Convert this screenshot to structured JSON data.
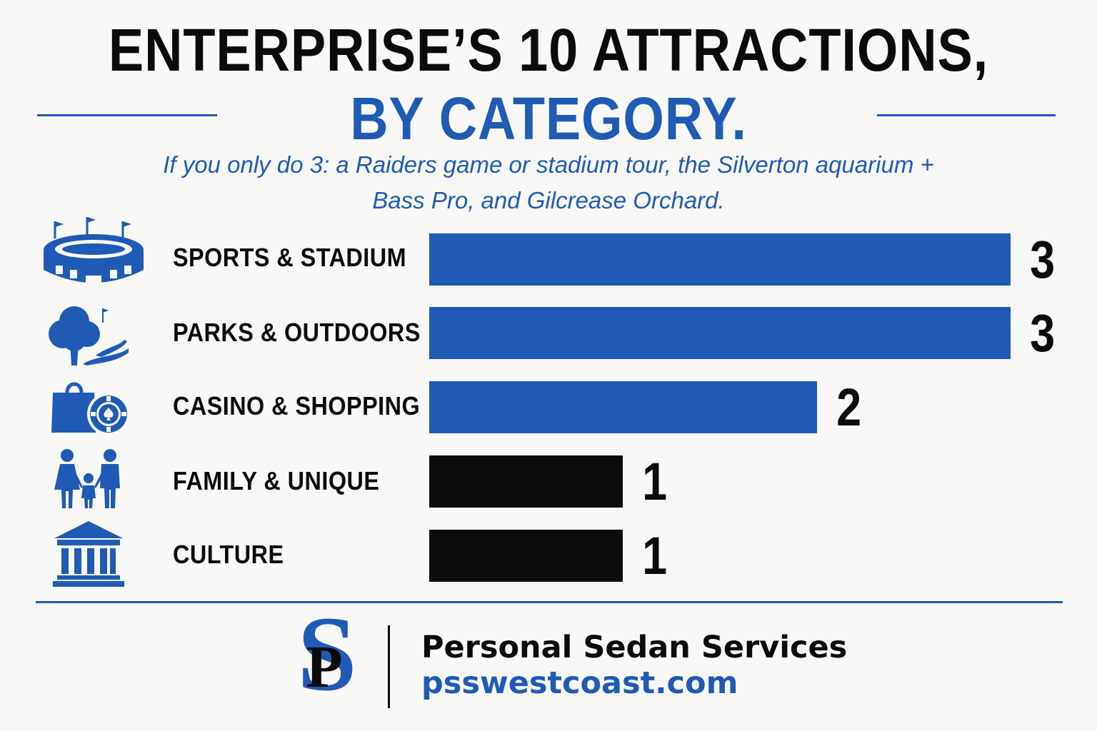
{
  "header": {
    "title_line1": "ENTERPRISE’S 10 ATTRACTIONS,",
    "title_line2": "BY CATEGORY.",
    "subtitle_line1": "If you only do 3: a Raiders game or stadium tour, the Silverton aquarium +",
    "subtitle_line2": "Bass Pro, and Gilcrease Orchard."
  },
  "colors": {
    "accent": "#1f5bb5",
    "dark": "#0b0b0b",
    "background": "#f8f8f6"
  },
  "chart_data": {
    "type": "bar",
    "orientation": "horizontal",
    "categories": [
      "SPORTS & STADIUM",
      "PARKS & OUTDOORS",
      "CASINO & SHOPPING",
      "FAMILY & UNIQUE",
      "CULTURE"
    ],
    "values": [
      3,
      3,
      2,
      1,
      1
    ],
    "value_labels": [
      "3",
      "3",
      "2",
      "1",
      "1"
    ],
    "bar_colors": [
      "#1f5bb5",
      "#1f5bb5",
      "#1f5bb5",
      "#0b0b0b",
      "#0b0b0b"
    ],
    "icons": [
      "stadium-icon",
      "tree-park-icon",
      "shopping-bag-casino-chip-icon",
      "family-icon",
      "museum-icon"
    ],
    "xlim": [
      0,
      3
    ],
    "title": "ENTERPRISE’S 10 ATTRACTIONS, BY CATEGORY.",
    "xlabel": "",
    "ylabel": "",
    "grid": false,
    "legend": "none"
  },
  "footer": {
    "logo_icon": "pss-monogram-logo",
    "company_name": "Personal Sedan Services",
    "website": "psswestcoast.com"
  }
}
